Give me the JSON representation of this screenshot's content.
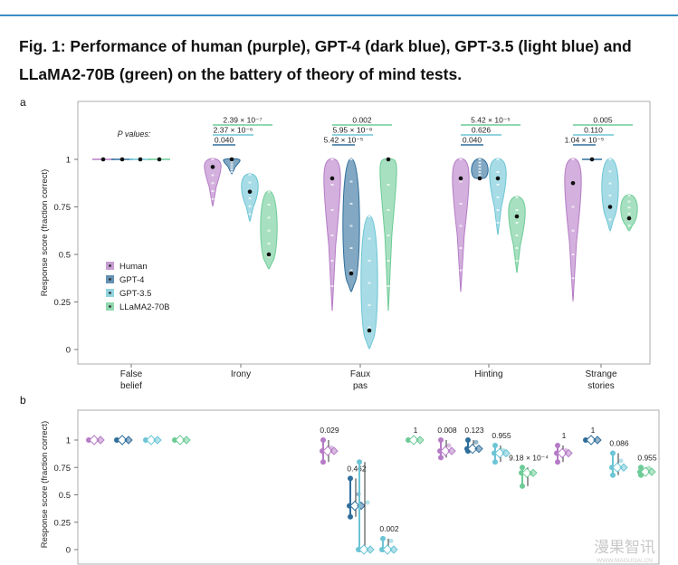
{
  "figure": {
    "title": "Fig. 1: Performance of human (purple), GPT-4 (dark blue), GPT-3.5 (light blue) and LLaMA2-70B (green) on the battery of theory of mind tests.",
    "watermark": "漫果智讯",
    "watermark_url": "WWW.MAGUOAI.CN"
  },
  "chart_data": [
    {
      "panel": "a",
      "type": "violin",
      "ylabel": "Response score (fraction correct)",
      "xlabel": "",
      "ylim": [
        0,
        1
      ],
      "yticks": [
        "0",
        "0.25",
        "0.5",
        "0.75",
        "1"
      ],
      "categories": [
        "False\nbelief",
        "Irony",
        "Faux\npas",
        "Hinting",
        "Strange\nstories"
      ],
      "category_labels": [
        [
          "False",
          "belief"
        ],
        [
          "Irony"
        ],
        [
          "Faux",
          "pas"
        ],
        [
          "Hinting"
        ],
        [
          "Strange",
          "stories"
        ]
      ],
      "series": [
        {
          "name": "Human",
          "color": "#b57bc6",
          "medians": [
            1.0,
            0.96,
            0.9,
            0.9,
            0.875
          ],
          "ranges": [
            [
              1,
              1
            ],
            [
              0.75,
              1
            ],
            [
              0.2,
              1
            ],
            [
              0.3,
              1
            ],
            [
              0.25,
              1
            ]
          ]
        },
        {
          "name": "GPT-4",
          "color": "#2f6e9b",
          "medians": [
            1.0,
            1.0,
            0.4,
            0.9,
            1.0
          ],
          "ranges": [
            [
              1,
              1
            ],
            [
              0.92,
              1
            ],
            [
              0.3,
              1
            ],
            [
              0.9,
              1
            ],
            [
              1,
              1
            ]
          ]
        },
        {
          "name": "GPT-3.5",
          "color": "#6cc5d5",
          "medians": [
            1.0,
            0.83,
            0.1,
            0.9,
            0.75
          ],
          "ranges": [
            [
              1,
              1
            ],
            [
              0.67,
              0.92
            ],
            [
              0,
              0.7
            ],
            [
              0.6,
              1
            ],
            [
              0.62,
              1
            ]
          ]
        },
        {
          "name": "LLaMA2-70B",
          "color": "#6ccb96",
          "medians": [
            1.0,
            0.5,
            1.0,
            0.7,
            0.69
          ],
          "ranges": [
            [
              1,
              1
            ],
            [
              0.42,
              0.83
            ],
            [
              0.2,
              1
            ],
            [
              0.4,
              0.8
            ],
            [
              0.62,
              0.81
            ]
          ]
        }
      ],
      "pvalues_label": "P values:",
      "pvalues": [
        {
          "category": "Irony",
          "items": [
            {
              "text": "2.39 × 10⁻⁷",
              "series": "LLaMA2-70B"
            },
            {
              "text": "2.37 × 10⁻⁶",
              "series": "GPT-3.5"
            },
            {
              "text": "0.040",
              "series": "GPT-4"
            }
          ]
        },
        {
          "category": "Faux pas",
          "items": [
            {
              "text": "0.002",
              "series": "LLaMA2-70B"
            },
            {
              "text": "5.95 × 10⁻⁸",
              "series": "GPT-3.5"
            },
            {
              "text": "5.42 × 10⁻⁵",
              "series": "GPT-4"
            }
          ]
        },
        {
          "category": "Hinting",
          "items": [
            {
              "text": "5.42 × 10⁻⁵",
              "series": "LLaMA2-70B"
            },
            {
              "text": "0.626",
              "series": "GPT-3.5"
            },
            {
              "text": "0.040",
              "series": "GPT-4"
            }
          ]
        },
        {
          "category": "Strange stories",
          "items": [
            {
              "text": "0.005",
              "series": "LLaMA2-70B"
            },
            {
              "text": "0.110",
              "series": "GPT-3.5"
            },
            {
              "text": "1.04 × 10⁻⁵",
              "series": "GPT-4"
            }
          ]
        }
      ],
      "legend": {
        "placement": "left-middle",
        "entries": [
          "Human",
          "GPT-4",
          "GPT-3.5",
          "LLaMA2-70B"
        ]
      }
    },
    {
      "panel": "b",
      "type": "dot-range",
      "ylabel": "Response score (fraction correct)",
      "ylim": [
        0,
        1
      ],
      "yticks": [
        "0",
        "0.25",
        "0.5",
        "0.75",
        "1"
      ],
      "groups": [
        {
          "category": "False belief",
          "series": "Human",
          "values": [
            1,
            1
          ],
          "mean": 1,
          "pvalue": ""
        },
        {
          "category": "False belief",
          "series": "GPT-4",
          "values": [
            1,
            1
          ],
          "mean": 1,
          "pvalue": ""
        },
        {
          "category": "False belief",
          "series": "GPT-3.5",
          "values": [
            1,
            1
          ],
          "mean": 1,
          "pvalue": ""
        },
        {
          "category": "False belief",
          "series": "LLaMA2-70B",
          "values": [
            1,
            1
          ],
          "mean": 1,
          "pvalue": ""
        },
        {
          "category": "Faux pas",
          "series": "Human",
          "values": [
            1.0,
            0.8
          ],
          "mean": 0.9,
          "pvalue": "0.029"
        },
        {
          "category": "Faux pas",
          "series": "GPT-4",
          "values": [
            0.65,
            0.3
          ],
          "mean": 0.4,
          "pvalue": "0.462"
        },
        {
          "category": "Faux pas",
          "series": "GPT-3.5",
          "values": [
            0.8,
            0.0
          ],
          "mean": 0.0,
          "pvalue": ""
        },
        {
          "category": "Faux pas",
          "series": "GPT-3.5",
          "values": [
            0.1,
            0.0
          ],
          "mean": 0.0,
          "pvalue": "0.002"
        },
        {
          "category": "Faux pas",
          "series": "LLaMA2-70B",
          "values": [
            1,
            1
          ],
          "mean": 1,
          "pvalue": "1"
        },
        {
          "category": "Hinting",
          "series": "Human",
          "values": [
            1.0,
            0.84
          ],
          "mean": 0.9,
          "pvalue": "0.008"
        },
        {
          "category": "Hinting",
          "series": "GPT-4",
          "values": [
            1.0,
            0.9
          ],
          "mean": 0.92,
          "pvalue": "0.123"
        },
        {
          "category": "Hinting",
          "series": "GPT-3.5",
          "values": [
            0.95,
            0.8
          ],
          "mean": 0.88,
          "pvalue": "0.955"
        },
        {
          "category": "Hinting",
          "series": "LLaMA2-70B",
          "values": [
            0.75,
            0.58
          ],
          "mean": 0.7,
          "pvalue": "9.18 × 10⁻⁴"
        },
        {
          "category": "Strange stories",
          "series": "Human",
          "values": [
            0.95,
            0.8
          ],
          "mean": 0.88,
          "pvalue": "1"
        },
        {
          "category": "Strange stories",
          "series": "GPT-4",
          "values": [
            1,
            1
          ],
          "mean": 1,
          "pvalue": "1"
        },
        {
          "category": "Strange stories",
          "series": "GPT-3.5",
          "values": [
            0.88,
            0.68
          ],
          "mean": 0.75,
          "pvalue": "0.086"
        },
        {
          "category": "Strange stories",
          "series": "LLaMA2-70B",
          "values": [
            0.75,
            0.68
          ],
          "mean": 0.71,
          "pvalue": "0.955"
        }
      ]
    }
  ]
}
